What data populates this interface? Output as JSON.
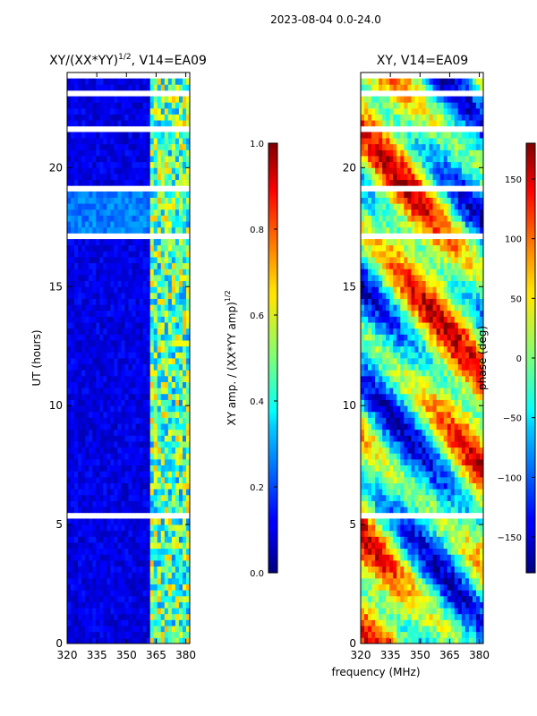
{
  "suptitle": "2023-08-04 0.0-24.0",
  "chart_data": [
    {
      "type": "heatmap",
      "title_main": "XY/(XX*YY)",
      "title_exp": "1/2",
      "title_suffix": ", V14=EA09",
      "xlabel": "",
      "ylabel": "UT (hours)",
      "xlim": [
        320,
        382
      ],
      "ylim": [
        0,
        24
      ],
      "xticks": [
        {
          "value": 320,
          "label": "320"
        },
        {
          "value": 335,
          "label": "335"
        },
        {
          "value": 350,
          "label": "350"
        },
        {
          "value": 365,
          "label": "365"
        },
        {
          "value": 380,
          "label": "380"
        }
      ],
      "yticks": [
        {
          "value": 0,
          "label": "0"
        },
        {
          "value": 5,
          "label": "5"
        },
        {
          "value": 10,
          "label": "10"
        },
        {
          "value": 15,
          "label": "15"
        },
        {
          "value": 20,
          "label": "20"
        }
      ],
      "colorbar": {
        "label_main": "XY amp. / (XX*YY amp)",
        "label_exp": "1/2",
        "range": [
          0.0,
          1.0
        ],
        "ticks": [
          {
            "value": 0.0,
            "label": "0.0"
          },
          {
            "value": 0.2,
            "label": "0.2"
          },
          {
            "value": 0.4,
            "label": "0.4"
          },
          {
            "value": 0.6,
            "label": "0.6"
          },
          {
            "value": 0.8,
            "label": "0.8"
          },
          {
            "value": 1.0,
            "label": "1.0"
          }
        ]
      }
    },
    {
      "type": "heatmap",
      "title_main": "XY, V14=EA09",
      "xlabel": "frequency (MHz)",
      "ylabel": "",
      "xlim": [
        320,
        382
      ],
      "ylim": [
        0,
        24
      ],
      "xticks": [
        {
          "value": 320,
          "label": "320"
        },
        {
          "value": 335,
          "label": "335"
        },
        {
          "value": 350,
          "label": "350"
        },
        {
          "value": 365,
          "label": "365"
        },
        {
          "value": 380,
          "label": "380"
        }
      ],
      "yticks": [
        {
          "value": 0,
          "label": "0"
        },
        {
          "value": 5,
          "label": "5"
        },
        {
          "value": 10,
          "label": "10"
        },
        {
          "value": 15,
          "label": "15"
        },
        {
          "value": 20,
          "label": "20"
        }
      ],
      "colorbar": {
        "label_main": "phase (deg)",
        "range": [
          -180,
          180
        ],
        "ticks": [
          {
            "value": -150,
            "label": "−150"
          },
          {
            "value": -100,
            "label": "−100"
          },
          {
            "value": -50,
            "label": "−50"
          },
          {
            "value": 0,
            "label": "0"
          },
          {
            "value": 50,
            "label": "50"
          },
          {
            "value": 100,
            "label": "100"
          },
          {
            "value": 150,
            "label": "150"
          }
        ]
      }
    }
  ]
}
